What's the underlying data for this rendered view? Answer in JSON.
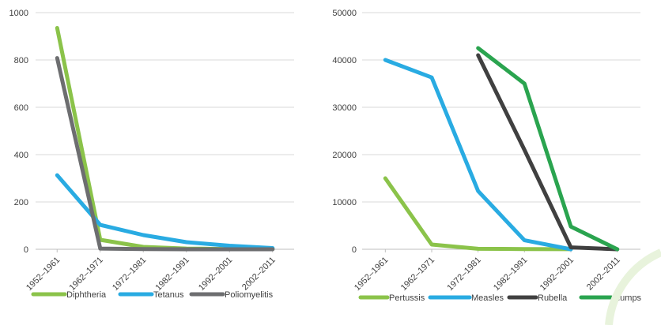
{
  "chart_data": [
    {
      "type": "line",
      "categories": [
        "1952–1961",
        "1962–1971",
        "1972–1981",
        "1982–1991",
        "1992–2001",
        "2002–2011"
      ],
      "ylim": [
        0,
        1000
      ],
      "yticks": [
        0,
        200,
        400,
        600,
        800,
        1000
      ],
      "grid": true,
      "legend_position": "bottom",
      "series": [
        {
          "name": "Diphtheria",
          "color": "#8bc34a",
          "values": [
            935,
            40,
            10,
            3,
            1,
            1
          ]
        },
        {
          "name": "Tetanus",
          "color": "#29abe2",
          "values": [
            313,
            103,
            60,
            30,
            15,
            5
          ]
        },
        {
          "name": "Poliomyelitis",
          "color": "#6d6e70",
          "values": [
            808,
            3,
            1,
            0,
            0,
            0
          ]
        }
      ]
    },
    {
      "type": "line",
      "categories": [
        "1952–1961",
        "1962–1971",
        "1972–1981",
        "1982–1991",
        "1992–2001",
        "2002–2011"
      ],
      "ylim": [
        0,
        50000
      ],
      "yticks": [
        0,
        10000,
        20000,
        30000,
        40000,
        50000
      ],
      "grid": true,
      "legend_position": "bottom",
      "series": [
        {
          "name": "Pertussis",
          "color": "#8bc34a",
          "values": [
            15000,
            1000,
            100,
            50,
            20,
            null
          ]
        },
        {
          "name": "Measles",
          "color": "#29abe2",
          "values": [
            40000,
            36300,
            12300,
            1900,
            0,
            null
          ]
        },
        {
          "name": "Rubella",
          "color": "#404040",
          "values": [
            null,
            null,
            41000,
            21000,
            400,
            0
          ]
        },
        {
          "name": "Mumps",
          "color": "#2aa44f",
          "values": [
            null,
            null,
            42500,
            35000,
            4800,
            0
          ]
        }
      ]
    }
  ]
}
